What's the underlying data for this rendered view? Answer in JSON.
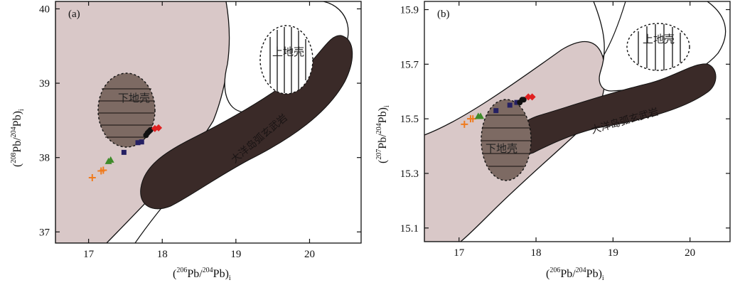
{
  "chart_data": [
    {
      "type": "scatter",
      "panel_label": "(a)",
      "xlabel": {
        "open": "(",
        "sup": "206",
        "main": "Pb/",
        "sup2": "204",
        "main2": "Pb)",
        "sub": "i"
      },
      "ylabel": {
        "open": "(",
        "sup": "208",
        "main": "Pb/",
        "sup2": "204",
        "main2": "Pb)",
        "sub": "i"
      },
      "xlim": [
        16.55,
        20.7
      ],
      "ylim": [
        36.85,
        40.1
      ],
      "xticks": [
        17,
        18,
        19,
        20
      ],
      "yticks": [
        37,
        38,
        39,
        40
      ],
      "regions": [
        {
          "name": "下地壳",
          "kind": "lower-crust"
        },
        {
          "name": "上地壳",
          "kind": "upper-crust"
        },
        {
          "name": "大洋岛弧玄武岩",
          "kind": "arc-basalt"
        }
      ],
      "series": [
        {
          "marker": "cross",
          "color": "#f07b1e",
          "points": [
            [
              17.05,
              37.73
            ],
            [
              17.17,
              37.82
            ],
            [
              17.2,
              37.83
            ]
          ]
        },
        {
          "marker": "triangle",
          "color": "#3e8b2a",
          "points": [
            [
              17.27,
              37.95
            ],
            [
              17.3,
              37.97
            ]
          ]
        },
        {
          "marker": "square",
          "color": "#252063",
          "points": [
            [
              17.48,
              38.07
            ],
            [
              17.67,
              38.2
            ],
            [
              17.72,
              38.21
            ]
          ]
        },
        {
          "marker": "circle",
          "color": "#111111",
          "points": [
            [
              17.78,
              38.3
            ],
            [
              17.8,
              38.33
            ],
            [
              17.82,
              38.35
            ],
            [
              17.84,
              38.37
            ]
          ]
        },
        {
          "marker": "diamond",
          "color": "#e02020",
          "points": [
            [
              17.9,
              38.39
            ],
            [
              17.95,
              38.4
            ]
          ]
        }
      ]
    },
    {
      "type": "scatter",
      "panel_label": "(b)",
      "xlabel": {
        "open": "(",
        "sup": "206",
        "main": "Pb/",
        "sup2": "204",
        "main2": "Pb)",
        "sub": "i"
      },
      "ylabel": {
        "open": "(",
        "sup": "207",
        "main": "Pb/",
        "sup2": "204",
        "main2": "Pb)",
        "sub": "i"
      },
      "xlim": [
        16.55,
        20.52
      ],
      "ylim": [
        15.05,
        15.93
      ],
      "xticks": [
        17,
        18,
        19,
        20
      ],
      "yticks": [
        15.1,
        15.3,
        15.5,
        15.7,
        15.9
      ],
      "regions": [
        {
          "name": "下地壳",
          "kind": "lower-crust"
        },
        {
          "name": "上地壳",
          "kind": "upper-crust"
        },
        {
          "name": "大洋岛弧玄武岩",
          "kind": "arc-basalt"
        }
      ],
      "series": [
        {
          "marker": "cross",
          "color": "#f07b1e",
          "points": [
            [
              17.07,
              15.48
            ],
            [
              17.15,
              15.5
            ],
            [
              17.18,
              15.5
            ]
          ]
        },
        {
          "marker": "triangle",
          "color": "#3e8b2a",
          "points": [
            [
              17.25,
              15.51
            ],
            [
              17.28,
              15.51
            ]
          ]
        },
        {
          "marker": "square",
          "color": "#252063",
          "points": [
            [
              17.48,
              15.53
            ],
            [
              17.66,
              15.55
            ],
            [
              17.75,
              15.56
            ]
          ]
        },
        {
          "marker": "circle",
          "color": "#111111",
          "points": [
            [
              17.79,
              15.56
            ],
            [
              17.82,
              15.57
            ],
            [
              17.84,
              15.57
            ]
          ]
        },
        {
          "marker": "diamond",
          "color": "#e02020",
          "points": [
            [
              17.9,
              15.58
            ],
            [
              17.95,
              15.58
            ]
          ]
        }
      ]
    }
  ],
  "colors": {
    "field_fill": "#d9c8c8",
    "arc_fill": "#3a2a28",
    "lower_crust_fill": "#7d6a63",
    "white": "#ffffff",
    "ink": "#111111"
  }
}
